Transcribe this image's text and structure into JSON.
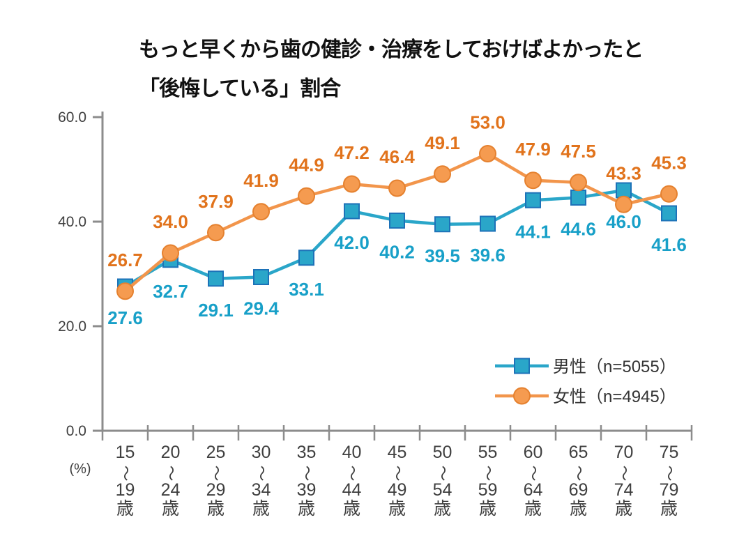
{
  "title": {
    "line1": "もっと早くから歯の健診・治療をしておけばよかったと",
    "line2": "「後悔している」割合"
  },
  "axis_unit": "(%)",
  "colors": {
    "axis": "#8c8c8c",
    "tick_label": "#3f3f3f",
    "legend_text": "#333333",
    "title_text": "#111111",
    "background": "#ffffff"
  },
  "chart_data": {
    "type": "line",
    "title": "もっと早くから歯の健診・治療をしておけばよかったと「後悔している」割合",
    "xlabel": "",
    "ylabel": "(%)",
    "ylim": [
      0,
      60
    ],
    "ytick_values": [
      0,
      20,
      40,
      60
    ],
    "ytick_labels": [
      "0.0",
      "20.0",
      "40.0",
      "60.0"
    ],
    "grid": false,
    "legend_position": "right-middle",
    "categories": [
      "15〜19歳",
      "20〜24歳",
      "25〜29歳",
      "30〜34歳",
      "35〜39歳",
      "40〜44歳",
      "45〜49歳",
      "50〜54歳",
      "55〜59歳",
      "60〜64歳",
      "65〜69歳",
      "70〜74歳",
      "75〜79歳"
    ],
    "series": [
      {
        "name": "男性（n=5055）",
        "marker": "square",
        "line_color": "#2aa6c9",
        "marker_fill": "#2aa6c9",
        "marker_stroke": "#1d72b8",
        "label_color": "#18a0c8",
        "label_side": "below",
        "values": [
          27.6,
          32.7,
          29.1,
          29.4,
          33.1,
          42.0,
          40.2,
          39.5,
          39.6,
          44.1,
          44.6,
          46.0,
          41.6
        ]
      },
      {
        "name": "女性（n=4945）",
        "marker": "circle",
        "line_color": "#f2954b",
        "marker_fill": "#f59b50",
        "marker_stroke": "#e5812f",
        "label_color": "#e1731c",
        "label_side": "above",
        "values": [
          26.7,
          34.0,
          37.9,
          41.9,
          44.9,
          47.2,
          46.4,
          49.1,
          53.0,
          47.9,
          47.5,
          43.3,
          45.3
        ]
      }
    ]
  }
}
